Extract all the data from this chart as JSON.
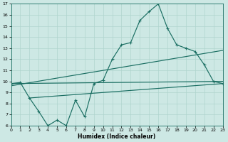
{
  "xlabel": "Humidex (Indice chaleur)",
  "bg_color": "#cde8e4",
  "grid_color": "#b0d4ce",
  "line_color": "#1a6e62",
  "xlim": [
    0,
    23
  ],
  "ylim": [
    6,
    17
  ],
  "xticks": [
    0,
    1,
    2,
    3,
    4,
    5,
    6,
    7,
    8,
    9,
    10,
    11,
    12,
    13,
    14,
    15,
    16,
    17,
    18,
    19,
    20,
    21,
    22,
    23
  ],
  "yticks": [
    6,
    7,
    8,
    9,
    10,
    11,
    12,
    13,
    14,
    15,
    16,
    17
  ],
  "curve_x": [
    0,
    1,
    2,
    3,
    4,
    5,
    6,
    7,
    8,
    9,
    10,
    11,
    12,
    13,
    14,
    15,
    16,
    17,
    18,
    19,
    20,
    21,
    22,
    23
  ],
  "curve_y": [
    9.8,
    9.9,
    8.5,
    7.3,
    6.0,
    6.5,
    6.0,
    8.3,
    6.8,
    9.8,
    10.1,
    12.0,
    13.3,
    13.5,
    15.5,
    16.3,
    17.0,
    14.8,
    13.3,
    13.0,
    12.7,
    11.5,
    10.0,
    9.8
  ],
  "straight_lines": [
    [
      [
        0,
        23
      ],
      [
        9.8,
        10.0
      ]
    ],
    [
      [
        0,
        23
      ],
      [
        9.6,
        12.8
      ]
    ],
    [
      [
        2,
        23
      ],
      [
        8.5,
        9.8
      ]
    ]
  ]
}
